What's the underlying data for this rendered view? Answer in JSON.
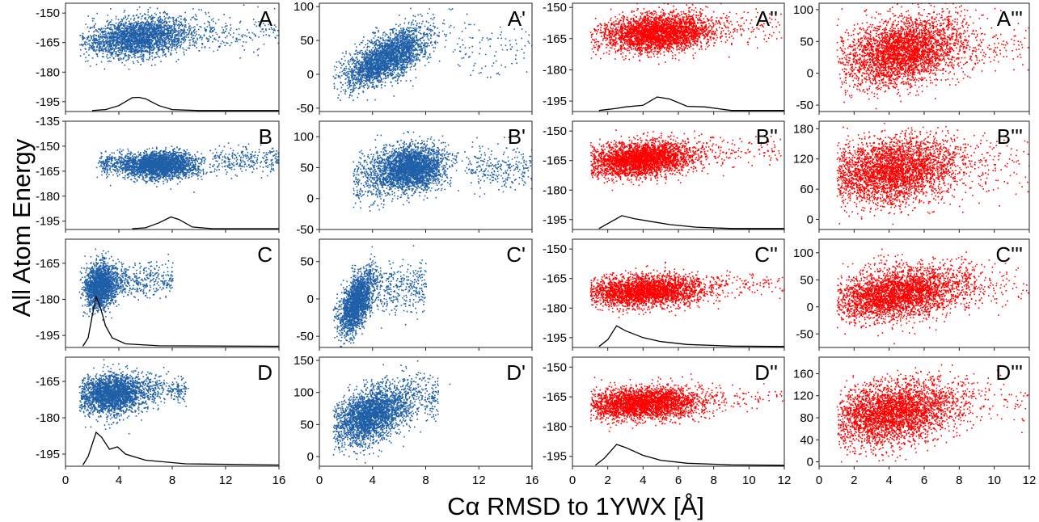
{
  "figure": {
    "ylabel": "All Atom Energy",
    "xlabel": "Cα RMSD to 1YWX [Å]",
    "colors": {
      "blue": "#1f5fa8",
      "red": "#ff0000",
      "line": "#000000"
    }
  },
  "chart_data": [
    {
      "type": "scatter",
      "label": "A",
      "color": "#1f5fa8",
      "xlim": [
        0,
        16
      ],
      "ylim": [
        -200,
        -145
      ],
      "yticks": [
        -150,
        -165,
        -180,
        -195
      ],
      "cloud": {
        "cx": 5.5,
        "sx": 2.0,
        "cy": -162,
        "sy": 5,
        "corr": 0.25,
        "n": 2600,
        "tail": [
          [
            9,
            16,
            -160,
            5,
            180
          ]
        ]
      },
      "dist": [
        [
          2,
          -199.5
        ],
        [
          3,
          -199
        ],
        [
          4,
          -197
        ],
        [
          5,
          -193
        ],
        [
          5.5,
          -192.8
        ],
        [
          6,
          -193.5
        ],
        [
          7,
          -197
        ],
        [
          8,
          -199
        ],
        [
          10,
          -199.5
        ],
        [
          16,
          -199.5
        ]
      ]
    },
    {
      "type": "scatter",
      "label": "A'",
      "color": "#1f5fa8",
      "xlim": [
        0,
        16
      ],
      "ylim": [
        -55,
        105
      ],
      "yticks": [
        100,
        50,
        0,
        -50
      ],
      "cloud": {
        "cx": 5.0,
        "sx": 1.6,
        "cy": 25,
        "sy": 22,
        "corr": 0.65,
        "n": 2800,
        "tail": [
          [
            10,
            16,
            40,
            20,
            100
          ]
        ]
      },
      "dist": []
    },
    {
      "type": "scatter",
      "label": "A''",
      "color": "#ff0000",
      "xlim": [
        0,
        12
      ],
      "ylim": [
        -200,
        -148
      ],
      "yticks": [
        -150,
        -165,
        -180,
        -195
      ],
      "cloud": {
        "cx": 4.8,
        "sx": 1.6,
        "cy": -162,
        "sy": 4.5,
        "corr": 0.2,
        "n": 3200,
        "tail": [
          [
            8,
            12,
            -160,
            4,
            80
          ]
        ]
      },
      "dist": [
        [
          1.5,
          -199.5
        ],
        [
          2.5,
          -198.5
        ],
        [
          3,
          -197.8
        ],
        [
          4,
          -197
        ],
        [
          4.8,
          -193
        ],
        [
          5.5,
          -194
        ],
        [
          6.5,
          -197.5
        ],
        [
          7.5,
          -197.8
        ],
        [
          9,
          -199.5
        ],
        [
          12,
          -199.5
        ]
      ]
    },
    {
      "type": "scatter",
      "label": "A'''",
      "color": "#ff0000",
      "xlim": [
        0,
        12
      ],
      "ylim": [
        -60,
        110
      ],
      "yticks": [
        100,
        50,
        0,
        -50
      ],
      "cloud": {
        "cx": 4.8,
        "sx": 1.8,
        "cy": 35,
        "sy": 28,
        "corr": 0.3,
        "n": 3400,
        "tail": [
          [
            8,
            12,
            40,
            20,
            80
          ]
        ]
      },
      "dist": []
    },
    {
      "type": "scatter",
      "label": "B",
      "color": "#1f5fa8",
      "xlim": [
        0,
        16
      ],
      "ylim": [
        -200,
        -135
      ],
      "yticks": [
        -135,
        -150,
        -165,
        -180,
        -195
      ],
      "cloud": {
        "cx": 7.0,
        "sx": 1.4,
        "cy": -161,
        "sy": 4,
        "corr": 0.05,
        "n": 2600,
        "tail": [
          [
            2.5,
            5,
            -160,
            3,
            220
          ],
          [
            11,
            16,
            -158,
            4,
            260
          ]
        ]
      },
      "dist": [
        [
          5,
          -199.5
        ],
        [
          6,
          -199
        ],
        [
          7,
          -196
        ],
        [
          7.9,
          -192.5
        ],
        [
          8.5,
          -194
        ],
        [
          9.5,
          -198.5
        ],
        [
          11,
          -199.5
        ],
        [
          16,
          -199.5
        ]
      ]
    },
    {
      "type": "scatter",
      "label": "B'",
      "color": "#1f5fa8",
      "xlim": [
        0,
        16
      ],
      "ylim": [
        -50,
        125
      ],
      "yticks": [
        100,
        50,
        0,
        -50
      ],
      "cloud": {
        "cx": 6.8,
        "sx": 1.3,
        "cy": 50,
        "sy": 18,
        "corr": 0.1,
        "n": 2800,
        "tail": [
          [
            2.5,
            5,
            30,
            20,
            240
          ],
          [
            11,
            16,
            50,
            18,
            260
          ]
        ]
      },
      "dist": []
    },
    {
      "type": "scatter",
      "label": "B''",
      "color": "#ff0000",
      "xlim": [
        0,
        12
      ],
      "ylim": [
        -200,
        -145
      ],
      "yticks": [
        -150,
        -165,
        -180,
        -195
      ],
      "cloud": {
        "cx": 3.8,
        "sx": 1.6,
        "cy": -164,
        "sy": 4.5,
        "corr": 0.25,
        "n": 3200,
        "tail": [
          [
            7,
            12,
            -160,
            4,
            100
          ]
        ]
      },
      "dist": [
        [
          1.5,
          -199.5
        ],
        [
          2,
          -197
        ],
        [
          2.8,
          -193
        ],
        [
          3.5,
          -194.5
        ],
        [
          4.5,
          -196
        ],
        [
          5.5,
          -197.5
        ],
        [
          7,
          -198.8
        ],
        [
          9,
          -199.5
        ],
        [
          12,
          -199.5
        ]
      ]
    },
    {
      "type": "scatter",
      "label": "B'''",
      "color": "#ff0000",
      "xlim": [
        0,
        12
      ],
      "ylim": [
        -20,
        195
      ],
      "yticks": [
        180,
        120,
        60,
        0
      ],
      "cloud": {
        "cx": 4.2,
        "sx": 1.9,
        "cy": 98,
        "sy": 32,
        "corr": 0.2,
        "n": 3400,
        "tail": [
          [
            8,
            12,
            110,
            30,
            90
          ]
        ]
      },
      "dist": []
    },
    {
      "type": "scatter",
      "label": "C",
      "color": "#1f5fa8",
      "xlim": [
        0,
        16
      ],
      "ylim": [
        -200,
        -155
      ],
      "yticks": [
        -165,
        -180,
        -195
      ],
      "cloud": {
        "cx": 2.6,
        "sx": 0.6,
        "cy": -174,
        "sy": 4.5,
        "corr": 0.15,
        "n": 2000,
        "tail": [
          [
            3.5,
            8,
            -172,
            3.5,
            350
          ]
        ]
      },
      "dist": [
        [
          1.3,
          -199.5
        ],
        [
          1.7,
          -196
        ],
        [
          2,
          -187
        ],
        [
          2.3,
          -179
        ],
        [
          2.6,
          -183
        ],
        [
          3,
          -191
        ],
        [
          3.5,
          -196
        ],
        [
          4.5,
          -198.5
        ],
        [
          7,
          -199.3
        ],
        [
          16,
          -199.5
        ]
      ]
    },
    {
      "type": "scatter",
      "label": "C'",
      "color": "#1f5fa8",
      "xlim": [
        0,
        16
      ],
      "ylim": [
        -65,
        80
      ],
      "yticks": [
        50,
        0,
        -50
      ],
      "cloud": {
        "cx": 2.7,
        "sx": 0.6,
        "cy": -5,
        "sy": 20,
        "corr": 0.5,
        "n": 2000,
        "tail": [
          [
            3.5,
            8,
            15,
            18,
            400
          ]
        ]
      },
      "dist": []
    },
    {
      "type": "scatter",
      "label": "C''",
      "color": "#ff0000",
      "xlim": [
        0,
        12
      ],
      "ylim": [
        -200,
        -145
      ],
      "yticks": [
        -150,
        -165,
        -180,
        -195
      ],
      "cloud": {
        "cx": 4.0,
        "sx": 1.8,
        "cy": -171,
        "sy": 4,
        "corr": 0.1,
        "n": 3000,
        "tail": [
          [
            8,
            12,
            -168,
            3,
            80
          ]
        ]
      },
      "dist": [
        [
          1.5,
          -199.5
        ],
        [
          2,
          -196
        ],
        [
          2.5,
          -189
        ],
        [
          3,
          -191.5
        ],
        [
          4,
          -195
        ],
        [
          5,
          -197
        ],
        [
          6.5,
          -198.5
        ],
        [
          9,
          -199.3
        ],
        [
          12,
          -199.5
        ]
      ]
    },
    {
      "type": "scatter",
      "label": "C'''",
      "color": "#ff0000",
      "xlim": [
        0,
        12
      ],
      "ylim": [
        -75,
        125
      ],
      "yticks": [
        100,
        50,
        0,
        -50
      ],
      "cloud": {
        "cx": 4.5,
        "sx": 2.0,
        "cy": 25,
        "sy": 25,
        "corr": 0.35,
        "n": 3400,
        "tail": [
          [
            8,
            12,
            40,
            20,
            80
          ]
        ]
      },
      "dist": []
    },
    {
      "type": "scatter",
      "label": "D",
      "color": "#1f5fa8",
      "xlim": [
        0,
        16
      ],
      "ylim": [
        -200,
        -155
      ],
      "yticks": [
        -165,
        -180,
        -195
      ],
      "cloud": {
        "cx": 3.5,
        "sx": 1.3,
        "cy": -170,
        "sy": 4,
        "corr": 0.15,
        "n": 2600,
        "tail": [
          [
            6,
            9,
            -168,
            3,
            200
          ]
        ]
      },
      "dist": [
        [
          1.3,
          -199.5
        ],
        [
          1.7,
          -196
        ],
        [
          2.3,
          -186
        ],
        [
          2.7,
          -188
        ],
        [
          3.3,
          -193
        ],
        [
          3.9,
          -192
        ],
        [
          4.5,
          -195
        ],
        [
          6,
          -197.5
        ],
        [
          9,
          -199
        ],
        [
          16,
          -199.5
        ]
      ]
    },
    {
      "type": "scatter",
      "label": "D'",
      "color": "#1f5fa8",
      "xlim": [
        0,
        16
      ],
      "ylim": [
        -15,
        155
      ],
      "yticks": [
        150,
        100,
        50,
        0
      ],
      "cloud": {
        "cx": 3.8,
        "sx": 1.4,
        "cy": 65,
        "sy": 22,
        "corr": 0.45,
        "n": 2800,
        "tail": [
          [
            6,
            9,
            95,
            18,
            220
          ]
        ]
      },
      "dist": []
    },
    {
      "type": "scatter",
      "label": "D''",
      "color": "#ff0000",
      "xlim": [
        0,
        12
      ],
      "ylim": [
        -200,
        -145
      ],
      "yticks": [
        -150,
        -165,
        -180,
        -195
      ],
      "cloud": {
        "cx": 4.0,
        "sx": 1.7,
        "cy": -168,
        "sy": 4,
        "corr": 0.15,
        "n": 3000,
        "tail": [
          [
            8,
            12,
            -165,
            3,
            60
          ]
        ]
      },
      "dist": [
        [
          1.3,
          -199.5
        ],
        [
          1.8,
          -196
        ],
        [
          2.5,
          -189
        ],
        [
          3,
          -190.5
        ],
        [
          4,
          -194.5
        ],
        [
          5,
          -197
        ],
        [
          6.5,
          -198.5
        ],
        [
          9,
          -199.3
        ],
        [
          12,
          -199.5
        ]
      ]
    },
    {
      "type": "scatter",
      "label": "D'''",
      "color": "#ff0000",
      "xlim": [
        0,
        12
      ],
      "ylim": [
        -8,
        190
      ],
      "yticks": [
        160,
        120,
        80,
        40,
        0
      ],
      "cloud": {
        "cx": 4.2,
        "sx": 1.9,
        "cy": 90,
        "sy": 28,
        "corr": 0.3,
        "n": 3400,
        "tail": [
          [
            8,
            12,
            110,
            25,
            70
          ]
        ]
      },
      "dist": []
    }
  ],
  "xaxes": [
    {
      "ticks": [
        "0",
        "4",
        "8",
        "12",
        "16"
      ],
      "values": [
        0,
        4,
        8,
        12,
        16
      ]
    },
    {
      "ticks": [
        "0",
        "4",
        "8",
        "12",
        "16"
      ],
      "values": [
        0,
        4,
        8,
        12,
        16
      ]
    },
    {
      "ticks": [
        "0",
        "2",
        "4",
        "6",
        "8",
        "10",
        "12"
      ],
      "values": [
        0,
        2,
        4,
        6,
        8,
        10,
        12
      ]
    },
    {
      "ticks": [
        "0",
        "2",
        "4",
        "6",
        "8",
        "10",
        "12"
      ],
      "values": [
        0,
        2,
        4,
        6,
        8,
        10,
        12
      ]
    }
  ]
}
